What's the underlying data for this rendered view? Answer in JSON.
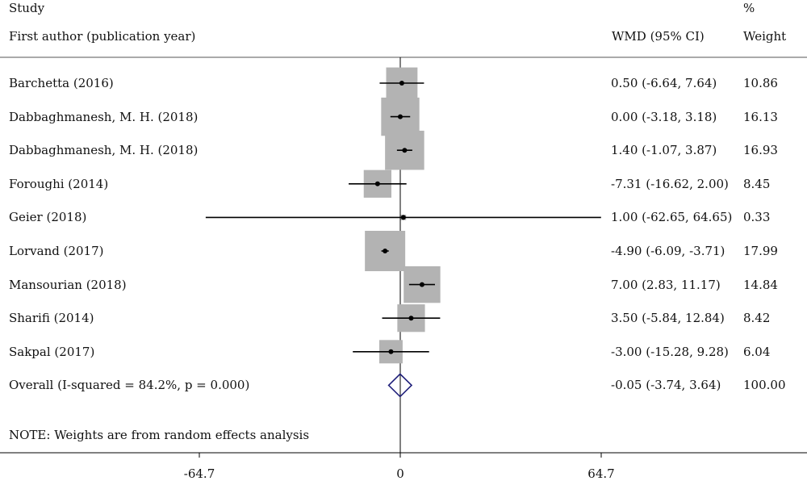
{
  "header": {
    "study": "Study",
    "first_author": "First author (publication year)",
    "ci_header": "WMD (95% CI)",
    "percent": "%",
    "weight_header": "Weight"
  },
  "note": "NOTE: Weights are from random effects analysis",
  "chart_data": {
    "type": "forest",
    "x_ticks": [
      {
        "value": -64.7,
        "label": "-64.7"
      },
      {
        "value": 0,
        "label": "0"
      },
      {
        "value": 64.7,
        "label": "64.7"
      }
    ],
    "null_line": 0,
    "studies": [
      {
        "label": "Barchetta (2016)",
        "est": 0.5,
        "lo": -6.64,
        "hi": 7.64,
        "ci_text": "0.50 (-6.64, 7.64)",
        "weight": 10.86,
        "weight_text": "10.86"
      },
      {
        "label": "Dabbaghmanesh, M. H. (2018)",
        "est": 0.0,
        "lo": -3.18,
        "hi": 3.18,
        "ci_text": "0.00 (-3.18, 3.18)",
        "weight": 16.13,
        "weight_text": "16.13"
      },
      {
        "label": "Dabbaghmanesh, M. H. (2018)",
        "est": 1.4,
        "lo": -1.07,
        "hi": 3.87,
        "ci_text": "1.40 (-1.07, 3.87)",
        "weight": 16.93,
        "weight_text": "16.93"
      },
      {
        "label": "Foroughi (2014)",
        "est": -7.31,
        "lo": -16.62,
        "hi": 2.0,
        "ci_text": "-7.31 (-16.62, 2.00)",
        "weight": 8.45,
        "weight_text": "8.45"
      },
      {
        "label": "Geier (2018)",
        "est": 1.0,
        "lo": -62.65,
        "hi": 64.65,
        "ci_text": "1.00 (-62.65, 64.65)",
        "weight": 0.33,
        "weight_text": "0.33"
      },
      {
        "label": "Lorvand (2017)",
        "est": -4.9,
        "lo": -6.09,
        "hi": -3.71,
        "ci_text": "-4.90 (-6.09, -3.71)",
        "weight": 17.99,
        "weight_text": "17.99"
      },
      {
        "label": "Mansourian (2018)",
        "est": 7.0,
        "lo": 2.83,
        "hi": 11.17,
        "ci_text": "7.00 (2.83, 11.17)",
        "weight": 14.84,
        "weight_text": "14.84"
      },
      {
        "label": "Sharifi (2014)",
        "est": 3.5,
        "lo": -5.84,
        "hi": 12.84,
        "ci_text": "3.50 (-5.84, 12.84)",
        "weight": 8.42,
        "weight_text": "8.42"
      },
      {
        "label": "Sakpal (2017)",
        "est": -3.0,
        "lo": -15.28,
        "hi": 9.28,
        "ci_text": "-3.00 (-15.28, 9.28)",
        "weight": 6.04,
        "weight_text": "6.04"
      }
    ],
    "overall": {
      "label": "Overall  (I-squared = 84.2%, p = 0.000)",
      "est": -0.05,
      "lo": -3.74,
      "hi": 3.64,
      "ci_text": "-0.05 (-3.74, 3.64)",
      "weight_text": "100.00"
    },
    "colors": {
      "box": "#b3b3b3",
      "ci_line": "#000000",
      "point": "#000000",
      "diamond": "#1f1f7a",
      "axis": "#000000"
    }
  }
}
